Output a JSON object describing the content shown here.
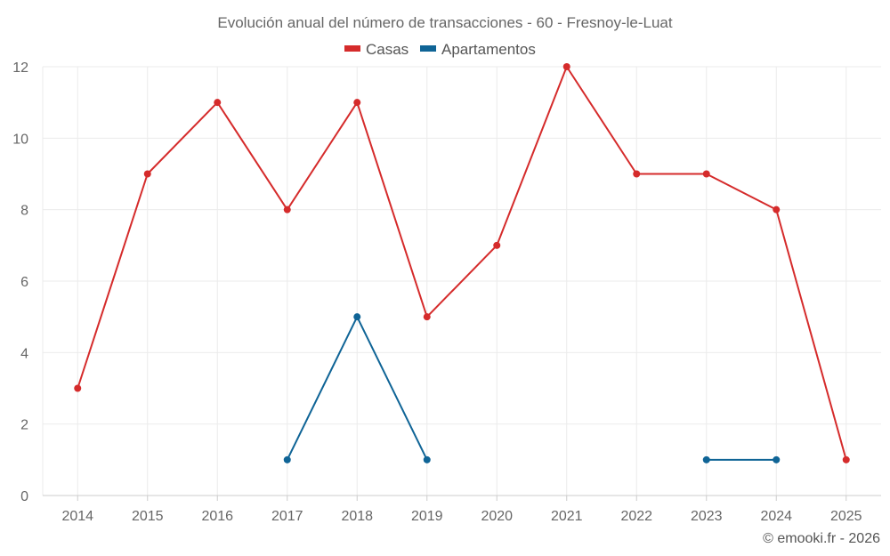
{
  "chart_data": {
    "type": "line",
    "title": "Evolución anual del número de transacciones - 60 - Fresnoy-le-Luat",
    "categories": [
      "2014",
      "2015",
      "2016",
      "2017",
      "2018",
      "2019",
      "2020",
      "2021",
      "2022",
      "2023",
      "2024",
      "2025"
    ],
    "ylim": [
      0,
      12
    ],
    "yticks": [
      0,
      2,
      4,
      6,
      8,
      10,
      12
    ],
    "grid": true,
    "legend_position": "top-center",
    "series": [
      {
        "name": "Casas",
        "color": "#d52b2b",
        "values": [
          3,
          9,
          11,
          8,
          11,
          5,
          7,
          12,
          9,
          9,
          8,
          1
        ]
      },
      {
        "name": "Apartamentos",
        "color": "#0f6496",
        "values": [
          null,
          null,
          null,
          1,
          5,
          1,
          null,
          null,
          null,
          1,
          1,
          null
        ]
      }
    ]
  },
  "credit": "© emooki.fr - 2026"
}
